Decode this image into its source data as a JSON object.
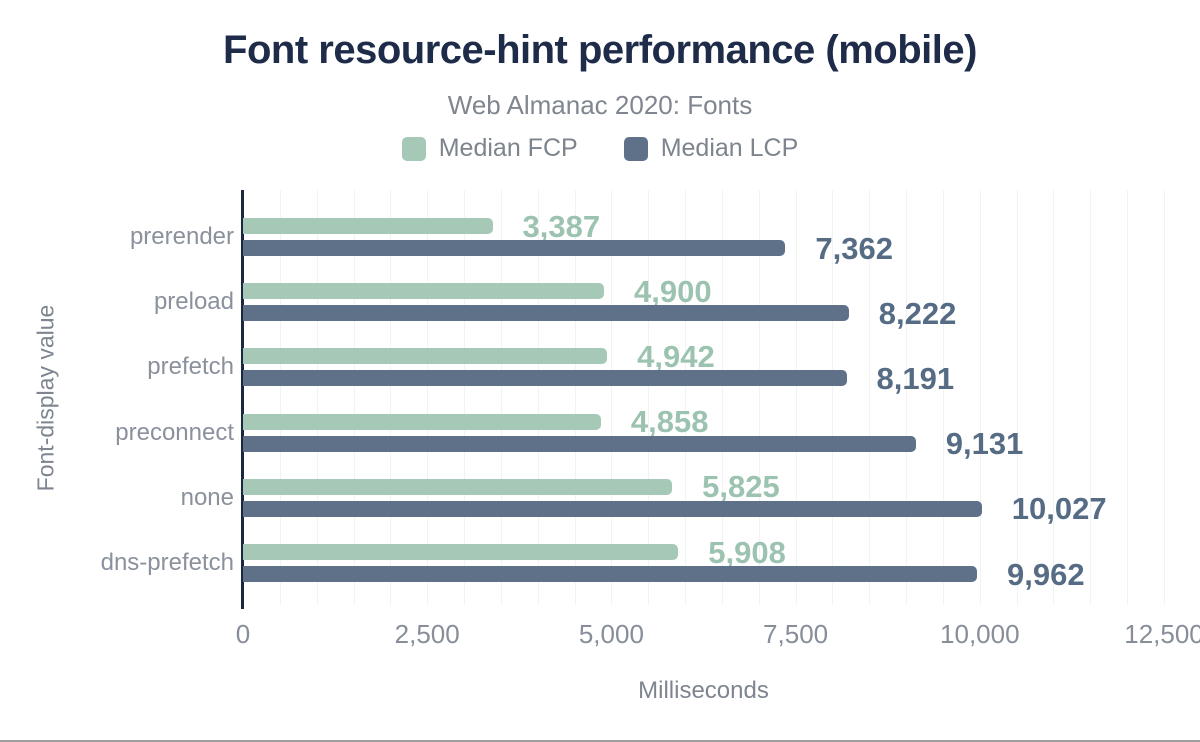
{
  "header": {
    "title": "Font resource-hint performance (mobile)",
    "subtitle": "Web Almanac 2020: Fonts"
  },
  "chart_data": {
    "type": "bar",
    "orientation": "horizontal",
    "title": "Font resource-hint performance (mobile)",
    "subtitle": "Web Almanac 2020: Fonts",
    "xlabel": "Milliseconds",
    "ylabel": "Font-display value",
    "xlim": [
      0,
      12500
    ],
    "gridline_step": 500,
    "grid": "vertical-minor-lines",
    "legend_position": "top-center",
    "categories": [
      "prerender",
      "preload",
      "prefetch",
      "preconnect",
      "none",
      "dns-prefetch"
    ],
    "series": [
      {
        "name": "Median FCP",
        "color": "#a6c9b7",
        "label_color": "#9cc3b0",
        "values": [
          3387,
          4900,
          4942,
          4858,
          5825,
          5908
        ],
        "labels": [
          "3,387",
          "4,900",
          "4,942",
          "4,858",
          "5,825",
          "5,908"
        ]
      },
      {
        "name": "Median LCP",
        "color": "#5f7089",
        "label_color": "#566b84",
        "values": [
          7362,
          8222,
          8191,
          9131,
          10027,
          9962
        ],
        "labels": [
          "7,362",
          "8,222",
          "8,191",
          "9,131",
          "10,027",
          "9,962"
        ]
      }
    ],
    "x_ticks": [
      {
        "value": 0,
        "label": "0"
      },
      {
        "value": 2500,
        "label": "2,500"
      },
      {
        "value": 5000,
        "label": "5,000"
      },
      {
        "value": 7500,
        "label": "7,500"
      },
      {
        "value": 10000,
        "label": "10,000"
      },
      {
        "value": 12500,
        "label": "12,500"
      }
    ]
  },
  "colors": {
    "title": "#1e2b49",
    "subtitle_text": "#80868f",
    "axis_line": "#1c2840",
    "gridline": "#f1f2f4",
    "tick_text": "#878e99",
    "category_text": "#8a919d",
    "bottom_edge": "#9e9e9e"
  }
}
